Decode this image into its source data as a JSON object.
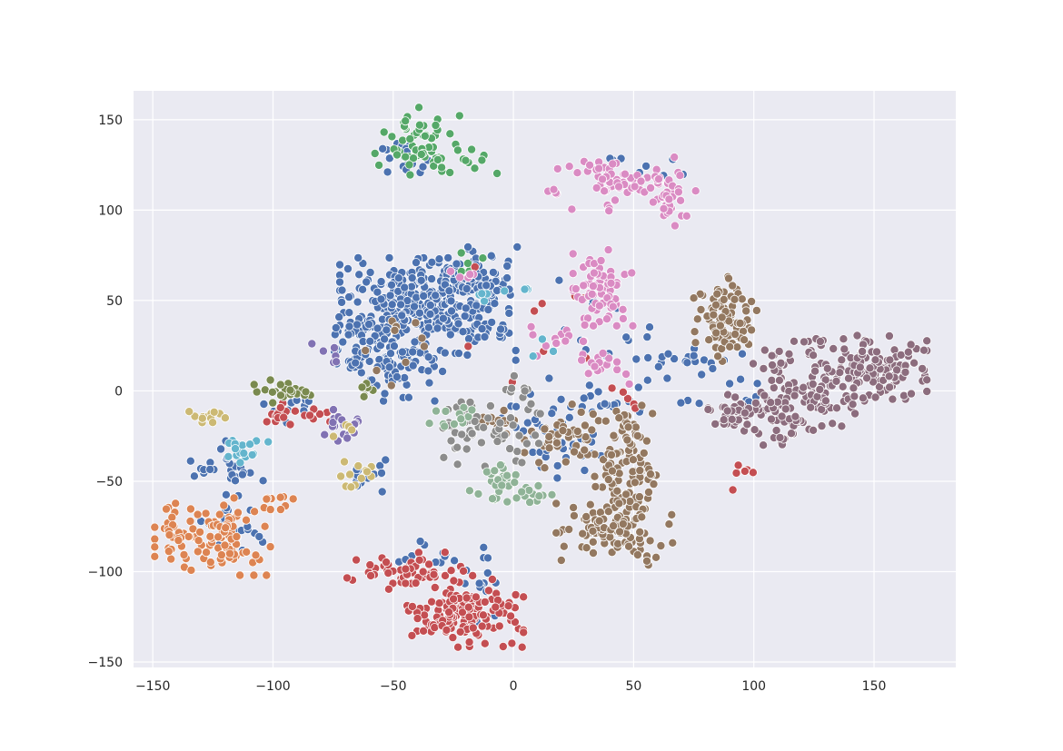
{
  "chart_data": {
    "type": "scatter",
    "title": "",
    "xlabel": "",
    "ylabel": "",
    "xlim": [
      -158,
      184
    ],
    "ylim": [
      -153,
      166
    ],
    "x_ticks": [
      -150,
      -100,
      -50,
      0,
      50,
      100,
      150
    ],
    "x_tick_labels": [
      "−150",
      "−100",
      "−50",
      "0",
      "50",
      "100",
      "150"
    ],
    "y_ticks": [
      150,
      100,
      50,
      0,
      -50,
      -100,
      -150
    ],
    "y_tick_labels": [
      "150",
      "100",
      "50",
      "0",
      "−50",
      "−100",
      "−150"
    ],
    "grid": true,
    "legend": "none",
    "style": {
      "background": "#eaeaf2",
      "grid_color": "#ffffff",
      "marker_edge": "#ffffff"
    },
    "clusters": [
      {
        "color": "#4c72b0",
        "blobs": [
          {
            "cx": -37,
            "cy": 45,
            "sx": 16,
            "sy": 13,
            "n": 330
          },
          {
            "cx": -16,
            "cy": 62,
            "sx": 8,
            "sy": 8,
            "n": 70
          },
          {
            "cx": -48,
            "cy": 12,
            "sx": 9,
            "sy": 8,
            "n": 70
          },
          {
            "cx": -67,
            "cy": 28,
            "sx": 7,
            "sy": 8,
            "n": 40
          },
          {
            "cx": -45,
            "cy": 130,
            "sx": 6,
            "sy": 6,
            "n": 25
          },
          {
            "cx": -119,
            "cy": -42,
            "sx": 7,
            "sy": 8,
            "n": 30
          },
          {
            "cx": -118,
            "cy": -75,
            "sx": 9,
            "sy": 7,
            "n": 25
          },
          {
            "cx": -62,
            "cy": -47,
            "sx": 4,
            "sy": 4,
            "n": 18
          },
          {
            "cx": -30,
            "cy": -92,
            "sx": 8,
            "sy": 4,
            "n": 14
          },
          {
            "cx": -15,
            "cy": -110,
            "sx": 6,
            "sy": 8,
            "n": 14
          },
          {
            "cx": 10,
            "cy": -12,
            "sx": 10,
            "sy": 10,
            "n": 25
          },
          {
            "cx": 20,
            "cy": -35,
            "sx": 8,
            "sy": 6,
            "n": 22
          },
          {
            "cx": 45,
            "cy": 20,
            "sx": 20,
            "sy": 20,
            "n": 35
          },
          {
            "cx": 50,
            "cy": 122,
            "sx": 10,
            "sy": 4,
            "n": 8
          },
          {
            "cx": 82,
            "cy": 15,
            "sx": 6,
            "sy": 5,
            "n": 12
          },
          {
            "cx": 100,
            "cy": 0,
            "sx": 4,
            "sy": 4,
            "n": 5
          },
          {
            "cx": 40,
            "cy": -10,
            "sx": 8,
            "sy": 6,
            "n": 15
          },
          {
            "cx": -95,
            "cy": -10,
            "sx": 8,
            "sy": 5,
            "n": 12
          }
        ]
      },
      {
        "color": "#55a868",
        "blobs": [
          {
            "cx": -40,
            "cy": 137,
            "sx": 8,
            "sy": 9,
            "n": 55
          },
          {
            "cx": -20,
            "cy": 130,
            "sx": 6,
            "sy": 6,
            "n": 15
          },
          {
            "cx": -17,
            "cy": 70,
            "sx": 4,
            "sy": 4,
            "n": 5
          }
        ]
      },
      {
        "color": "#dd8452",
        "blobs": [
          {
            "cx": -125,
            "cy": -80,
            "sx": 11,
            "sy": 10,
            "n": 110
          },
          {
            "cx": -97,
            "cy": -62,
            "sx": 4,
            "sy": 3,
            "n": 10
          }
        ]
      },
      {
        "color": "#c44e52",
        "blobs": [
          {
            "cx": -20,
            "cy": -122,
            "sx": 11,
            "sy": 9,
            "n": 150
          },
          {
            "cx": -45,
            "cy": -100,
            "sx": 11,
            "sy": 5,
            "n": 55
          },
          {
            "cx": -93,
            "cy": -12,
            "sx": 8,
            "sy": 4,
            "n": 22
          },
          {
            "cx": 95,
            "cy": -46,
            "sx": 3,
            "sy": 4,
            "n": 6
          },
          {
            "cx": 0,
            "cy": 40,
            "sx": 20,
            "sy": 20,
            "n": 10
          },
          {
            "cx": 50,
            "cy": -5,
            "sx": 6,
            "sy": 4,
            "n": 5
          }
        ]
      },
      {
        "color": "#8172b3",
        "blobs": [
          {
            "cx": -71,
            "cy": -19,
            "sx": 4,
            "sy": 4,
            "n": 22
          },
          {
            "cx": -75,
            "cy": 18,
            "sx": 4,
            "sy": 5,
            "n": 6
          }
        ]
      },
      {
        "color": "#937860",
        "blobs": [
          {
            "cx": 47,
            "cy": -42,
            "sx": 6,
            "sy": 9,
            "n": 70
          },
          {
            "cx": 42,
            "cy": -75,
            "sx": 11,
            "sy": 10,
            "n": 110
          },
          {
            "cx": 88,
            "cy": 38,
            "sx": 6,
            "sy": 12,
            "n": 90
          },
          {
            "cx": 20,
            "cy": -25,
            "sx": 7,
            "sy": 8,
            "n": 45
          },
          {
            "cx": 48,
            "cy": -20,
            "sx": 5,
            "sy": 6,
            "n": 25
          },
          {
            "cx": -8,
            "cy": -15,
            "sx": 5,
            "sy": 4,
            "n": 15
          },
          {
            "cx": -48,
            "cy": 25,
            "sx": 10,
            "sy": 10,
            "n": 10
          }
        ]
      },
      {
        "color": "#da8bc3",
        "blobs": [
          {
            "cx": 45,
            "cy": 115,
            "sx": 14,
            "sy": 7,
            "n": 75
          },
          {
            "cx": 64,
            "cy": 105,
            "sx": 4,
            "sy": 8,
            "n": 25
          },
          {
            "cx": 38,
            "cy": 58,
            "sx": 6,
            "sy": 10,
            "n": 70
          },
          {
            "cx": 40,
            "cy": 12,
            "sx": 4,
            "sy": 4,
            "n": 15
          },
          {
            "cx": 20,
            "cy": 28,
            "sx": 6,
            "sy": 5,
            "n": 15
          },
          {
            "cx": -20,
            "cy": 65,
            "sx": 5,
            "sy": 5,
            "n": 5
          }
        ]
      },
      {
        "color": "#8c6d7e",
        "blobs": [
          {
            "cx": 150,
            "cy": 13,
            "sx": 10,
            "sy": 8,
            "n": 110
          },
          {
            "cx": 125,
            "cy": -2,
            "sx": 10,
            "sy": 9,
            "n": 90
          },
          {
            "cx": 113,
            "cy": -18,
            "sx": 5,
            "sy": 7,
            "n": 35
          },
          {
            "cx": 92,
            "cy": -12,
            "sx": 5,
            "sy": 5,
            "n": 40
          },
          {
            "cx": 108,
            "cy": 15,
            "sx": 4,
            "sy": 5,
            "n": 15
          },
          {
            "cx": 123,
            "cy": 25,
            "sx": 5,
            "sy": 4,
            "n": 12
          }
        ]
      },
      {
        "color": "#8c8c8c",
        "blobs": [
          {
            "cx": -3,
            "cy": -22,
            "sx": 11,
            "sy": 9,
            "n": 35
          },
          {
            "cx": -22,
            "cy": -23,
            "sx": 7,
            "sy": 8,
            "n": 25
          },
          {
            "cx": 2,
            "cy": 0,
            "sx": 4,
            "sy": 4,
            "n": 8
          }
        ]
      },
      {
        "color": "#ccb974",
        "blobs": [
          {
            "cx": -127,
            "cy": -16,
            "sx": 4,
            "sy": 3,
            "n": 12
          },
          {
            "cx": -63,
            "cy": -48,
            "sx": 4,
            "sy": 4,
            "n": 12
          },
          {
            "cx": -70,
            "cy": -20,
            "sx": 3,
            "sy": 3,
            "n": 4
          }
        ]
      },
      {
        "color": "#64b5cd",
        "blobs": [
          {
            "cx": -113,
            "cy": -32,
            "sx": 5,
            "sy": 4,
            "n": 18
          },
          {
            "cx": -10,
            "cy": 52,
            "sx": 3,
            "sy": 3,
            "n": 5
          },
          {
            "cx": 5,
            "cy": 58,
            "sx": 2,
            "sy": 2,
            "n": 3
          },
          {
            "cx": 10,
            "cy": 22,
            "sx": 3,
            "sy": 3,
            "n": 3
          }
        ]
      },
      {
        "color": "#7a8a4f",
        "blobs": [
          {
            "cx": -95,
            "cy": 0,
            "sx": 7,
            "sy": 3,
            "n": 22
          },
          {
            "cx": -62,
            "cy": 0,
            "sx": 3,
            "sy": 3,
            "n": 6
          }
        ]
      },
      {
        "color": "#8fb397",
        "blobs": [
          {
            "cx": -5,
            "cy": -52,
            "sx": 6,
            "sy": 5,
            "n": 30
          },
          {
            "cx": -28,
            "cy": -15,
            "sx": 6,
            "sy": 4,
            "n": 12
          },
          {
            "cx": 10,
            "cy": -55,
            "sx": 5,
            "sy": 4,
            "n": 10
          }
        ]
      }
    ]
  }
}
